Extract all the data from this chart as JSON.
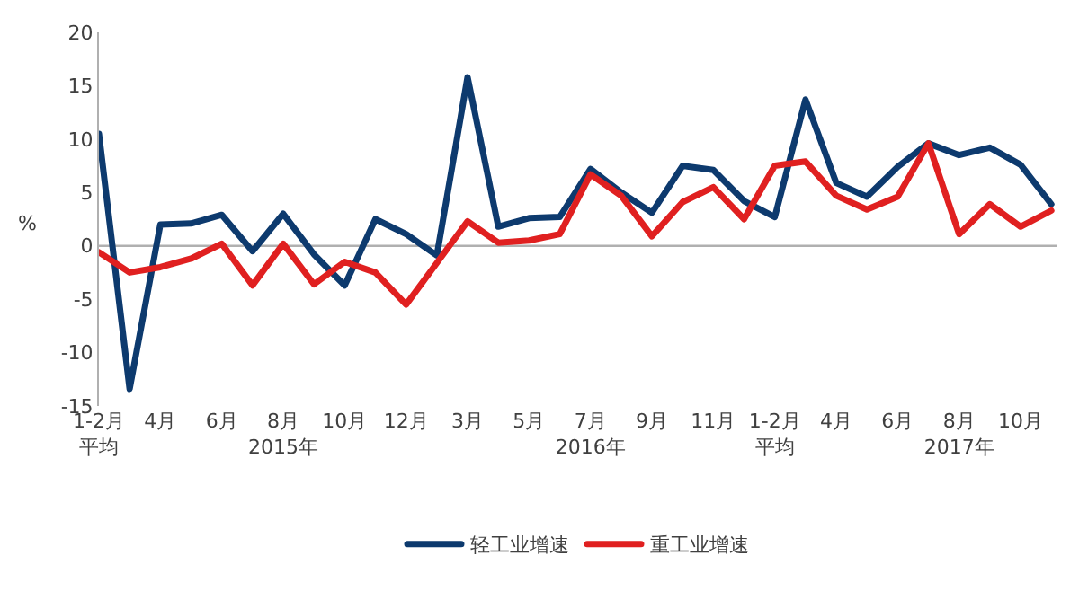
{
  "chart_data": {
    "type": "line",
    "ylabel": "%",
    "categories": [
      "1-2月平均",
      null,
      "4月",
      null,
      "6月",
      null,
      "8月\n2015年",
      null,
      "10月",
      null,
      "12月",
      null,
      "3月",
      null,
      "5月",
      null,
      "7月\n2016年",
      null,
      "9月",
      null,
      "11月",
      null,
      "1-2月平均",
      null,
      "4月",
      null,
      "6月",
      null,
      "8月\n2017年",
      null,
      "10月",
      null
    ],
    "series": [
      {
        "name": "轻工业增速",
        "color": "#0d3a6e",
        "values": [
          10.5,
          -13.4,
          2.0,
          2.1,
          2.9,
          -0.5,
          3.0,
          -0.8,
          -3.7,
          2.5,
          1.1,
          -0.9,
          15.8,
          1.8,
          2.6,
          2.7,
          7.2,
          5.0,
          3.1,
          7.5,
          7.1,
          4.2,
          2.7,
          13.7,
          5.9,
          4.6,
          7.4,
          9.6,
          8.5,
          9.2,
          7.6,
          3.9
        ]
      },
      {
        "name": "重工业增速",
        "color": "#e02020",
        "values": [
          -0.6,
          -2.5,
          -2.0,
          -1.2,
          0.2,
          -3.7,
          0.2,
          -3.6,
          -1.5,
          -2.5,
          -5.5,
          -1.6,
          2.3,
          0.3,
          0.5,
          1.1,
          6.7,
          4.7,
          0.9,
          4.1,
          5.5,
          2.5,
          7.5,
          7.9,
          4.7,
          3.4,
          4.6,
          9.6,
          1.1,
          3.9,
          1.8,
          3.3
        ]
      }
    ],
    "ylim": [
      -15,
      20
    ],
    "yticks": [
      -15,
      -10,
      -5,
      0,
      5,
      10,
      15,
      20
    ],
    "ref_lines": [
      {
        "axis": "y",
        "value": 0,
        "color": "#b0b0b0"
      }
    ],
    "grid": false,
    "legend": "bottom",
    "marker": "none",
    "line_style": "solid"
  }
}
